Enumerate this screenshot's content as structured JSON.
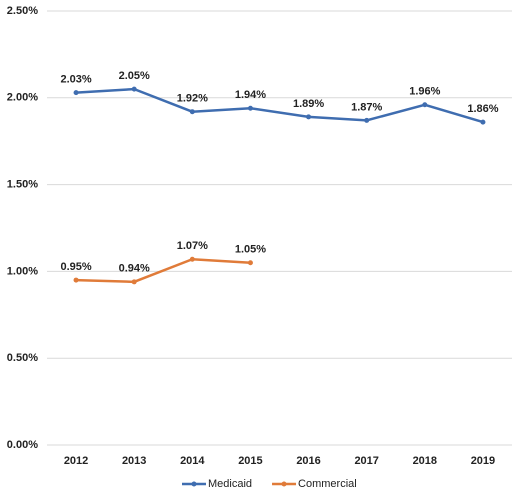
{
  "chart_data": {
    "type": "line",
    "categories": [
      "2012",
      "2013",
      "2014",
      "2015",
      "2016",
      "2017",
      "2018",
      "2019"
    ],
    "series": [
      {
        "name": "Medicaid",
        "color": "#3f6db0",
        "values": [
          2.03,
          2.05,
          1.92,
          1.94,
          1.89,
          1.87,
          1.96,
          1.86
        ],
        "value_labels": [
          "2.03%",
          "2.05%",
          "1.92%",
          "1.94%",
          "1.89%",
          "1.87%",
          "1.96%",
          "1.86%"
        ]
      },
      {
        "name": "Commercial",
        "color": "#e07b39",
        "values": [
          0.95,
          0.94,
          1.07,
          1.05,
          null,
          null,
          null,
          null
        ],
        "value_labels": [
          "0.95%",
          "0.94%",
          "1.07%",
          "1.05%",
          null,
          null,
          null,
          null
        ]
      }
    ],
    "ylim": [
      0,
      2.5
    ],
    "yticks": [
      {
        "value": 0,
        "label": "0.00%"
      },
      {
        "value": 0.5,
        "label": "0.50%"
      },
      {
        "value": 1,
        "label": "1.00%"
      },
      {
        "value": 1.5,
        "label": "1.50%"
      },
      {
        "value": 2,
        "label": "2.00%"
      },
      {
        "value": 2.5,
        "label": "2.50%"
      }
    ],
    "grid": true,
    "legend": "bottom"
  }
}
